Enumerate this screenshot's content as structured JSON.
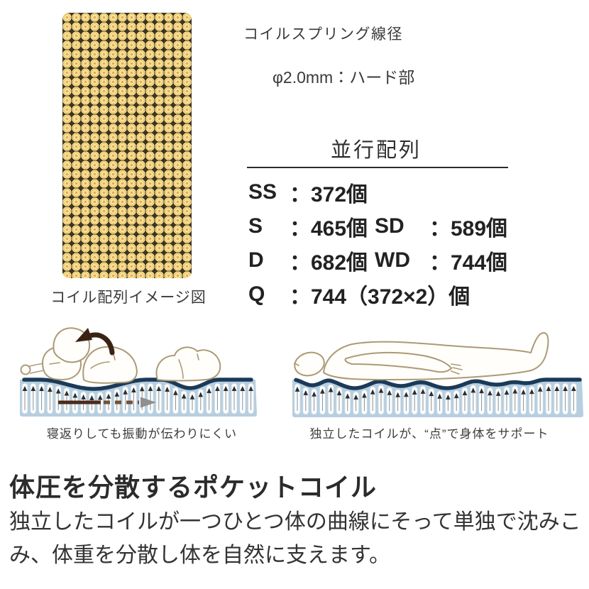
{
  "palette": {
    "coil_gold": "#ecc766",
    "coil_orange": "#dd8b3e",
    "grid_background": "#3f3422",
    "mattress_blue": "#b7cedf",
    "contour_navy": "#1b3a58",
    "figure_outline_tan": "#ab9a76",
    "text_dark": "#2e2e2e"
  },
  "coil_diagram": {
    "image_name": "pocket-coil-grid-pattern",
    "caption": "コイル配列イメージ図"
  },
  "spring_spec": {
    "title": "コイルスプリング線径",
    "icon": "coil-top-view-icon",
    "diameter_label": "φ2.0mm：ハード部"
  },
  "arrangement": {
    "title": "並行配列",
    "colon": "：",
    "rows": [
      {
        "items": [
          {
            "label": "SS",
            "value": "372個"
          }
        ]
      },
      {
        "items": [
          {
            "label": "S",
            "value": "465個"
          },
          {
            "label": "SD",
            "value": "589個"
          }
        ]
      },
      {
        "items": [
          {
            "label": "D",
            "value": "682個"
          },
          {
            "label": "WD",
            "value": "744個"
          }
        ]
      },
      {
        "items": [
          {
            "label": "Q",
            "value": "744（372×2）個"
          }
        ]
      }
    ]
  },
  "illustrations": {
    "left_caption": "寝返りしても振動が伝わりにくい",
    "right_caption": "独立したコイルが、“点”で身体をサポート"
  },
  "description": {
    "heading": "体圧を分散するポケットコイル",
    "body": "独立したコイルが一つひとつ体の曲線にそって単独で沈みこみ、体重を分散し体を自然に支えます。"
  }
}
